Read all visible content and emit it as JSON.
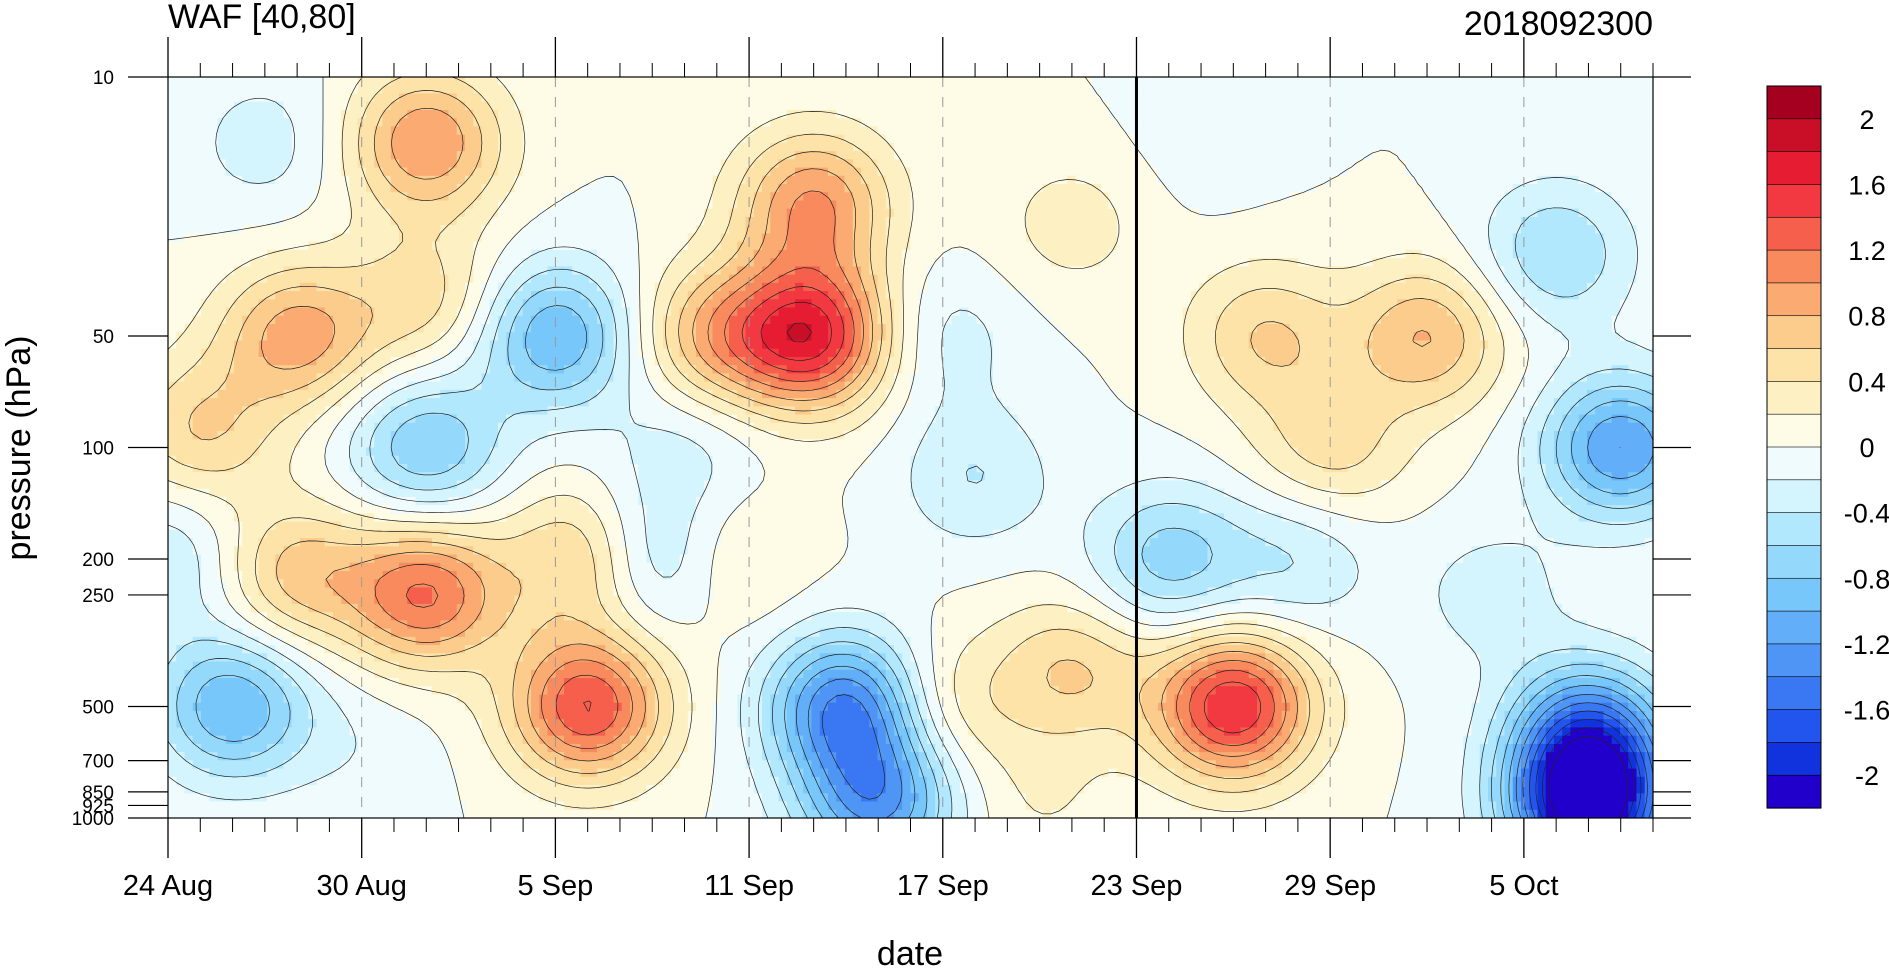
{
  "chart_data": {
    "type": "heatmap",
    "title": "WAF [40,80]",
    "subtitle": "2018092300",
    "xlabel": "date",
    "ylabel": "pressure (hPa)",
    "x_tick_labels": [
      "24 Aug",
      "30 Aug",
      "5 Sep",
      "11 Sep",
      "17 Sep",
      "23 Sep",
      "29 Sep",
      "5 Oct"
    ],
    "y_tick_labels": [
      "10",
      "50",
      "100",
      "200",
      "250",
      "500",
      "700",
      "850",
      "925",
      "1000"
    ],
    "y_log_scale": true,
    "pressure_levels": [
      10,
      50,
      100,
      200,
      250,
      500,
      700,
      850,
      925,
      1000
    ],
    "date_range": [
      "2018-08-24",
      "2018-10-09"
    ],
    "marked_date": "2018-09-23",
    "colorbar_tick_labels": [
      "2",
      "1.6",
      "1.2",
      "0.8",
      "0.4",
      "0",
      "-0.4",
      "-0.8",
      "-1.2",
      "-1.6",
      "-2"
    ],
    "contour_levels": [
      -2.2,
      -2.0,
      -1.8,
      -1.6,
      -1.4,
      -1.2,
      -1.0,
      -0.8,
      -0.6,
      -0.4,
      -0.2,
      0,
      0.2,
      0.4,
      0.6,
      0.8,
      1.0,
      1.2,
      1.4,
      1.6,
      1.8,
      2.0,
      2.2
    ],
    "colors": [
      "#2200cc",
      "#1133dd",
      "#2255ee",
      "#3a77f2",
      "#4f95f5",
      "#62aef8",
      "#78c7fb",
      "#94d8fc",
      "#b2e8fd",
      "#d4f4fe",
      "#effbfd",
      "#fefbe6",
      "#fdf0c2",
      "#fde3a8",
      "#fccc8c",
      "#fbab72",
      "#f98a5e",
      "#f55f4c",
      "#f23840",
      "#e61c33",
      "#c90f28",
      "#a5001f"
    ],
    "blobs": [
      {
        "date": "2018-08-30",
        "level": 650,
        "value": -0.15
      },
      {
        "date": "2018-09-01",
        "level": 15,
        "value": 1.0
      },
      {
        "date": "2018-09-01",
        "level": 40,
        "value": 0.5
      },
      {
        "date": "2018-08-28",
        "level": 50,
        "value": 0.9
      },
      {
        "date": "2018-08-25",
        "level": 90,
        "value": 0.6
      },
      {
        "date": "2018-08-28",
        "level": 220,
        "value": 0.7
      },
      {
        "date": "2018-09-01",
        "level": 250,
        "value": 1.2
      },
      {
        "date": "2018-09-01",
        "level": 100,
        "value": -0.8
      },
      {
        "date": "2018-08-26",
        "level": 500,
        "value": -1.0
      },
      {
        "date": "2018-08-24",
        "level": 200,
        "value": -0.4
      },
      {
        "date": "2018-08-27",
        "level": 15,
        "value": -0.3
      },
      {
        "date": "2018-09-05",
        "level": 50,
        "value": -1.0
      },
      {
        "date": "2018-09-06",
        "level": 500,
        "value": 1.4
      },
      {
        "date": "2018-09-06",
        "level": 200,
        "value": 0.8
      },
      {
        "date": "2018-09-08",
        "level": 200,
        "value": -0.8
      },
      {
        "date": "2018-09-10",
        "level": 50,
        "value": 0.8
      },
      {
        "date": "2018-09-10",
        "level": 200,
        "value": 0.4
      },
      {
        "date": "2018-09-09",
        "level": 100,
        "value": -0.3
      },
      {
        "date": "2018-09-13",
        "level": 50,
        "value": 1.6
      },
      {
        "date": "2018-09-13",
        "level": 22,
        "value": 1.0
      },
      {
        "date": "2018-09-14",
        "level": 500,
        "value": -1.4
      },
      {
        "date": "2018-09-15",
        "level": 900,
        "value": -1.2
      },
      {
        "date": "2018-09-17",
        "level": 50,
        "value": -0.3
      },
      {
        "date": "2018-09-18",
        "level": 120,
        "value": -0.4
      },
      {
        "date": "2018-09-17",
        "level": 500,
        "value": 0.4
      },
      {
        "date": "2018-09-21",
        "level": 400,
        "value": 0.6
      },
      {
        "date": "2018-09-21",
        "level": 25,
        "value": 0.3
      },
      {
        "date": "2018-09-26",
        "level": 500,
        "value": 1.6
      },
      {
        "date": "2018-09-24",
        "level": 200,
        "value": -0.7
      },
      {
        "date": "2018-09-25",
        "level": 15,
        "value": -0.1
      },
      {
        "date": "2018-09-27",
        "level": 50,
        "value": 0.6
      },
      {
        "date": "2018-10-02",
        "level": 50,
        "value": 0.8
      },
      {
        "date": "2018-09-29",
        "level": 100,
        "value": 0.5
      },
      {
        "date": "2018-09-28",
        "level": 200,
        "value": -0.4
      },
      {
        "date": "2018-10-04",
        "level": 250,
        "value": -0.3
      },
      {
        "date": "2018-10-07",
        "level": 950,
        "value": -2.2
      },
      {
        "date": "2018-10-07",
        "level": 600,
        "value": -1.4
      },
      {
        "date": "2018-10-08",
        "level": 100,
        "value": -1.2
      },
      {
        "date": "2018-10-06",
        "level": 30,
        "value": -0.6
      },
      {
        "date": "2018-09-20",
        "level": 900,
        "value": 0.2
      }
    ]
  }
}
